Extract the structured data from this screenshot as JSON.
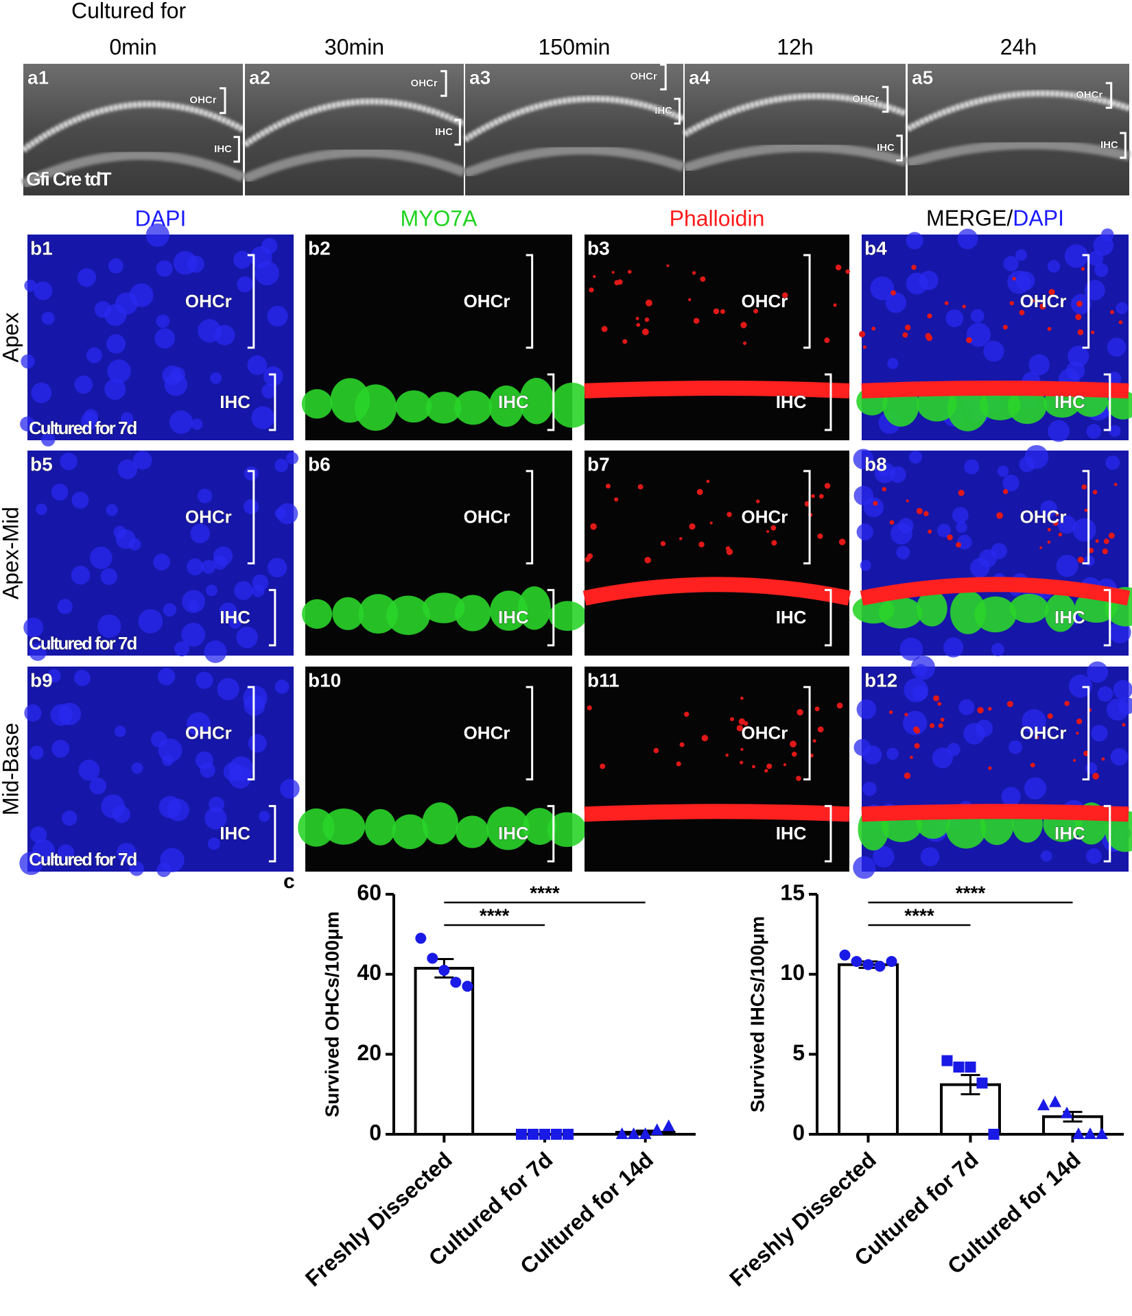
{
  "header": "Cultured for",
  "time_labels": [
    "0min",
    "30min",
    "150min",
    "12h",
    "24h"
  ],
  "a_panels": [
    {
      "id": "a1",
      "labels": [
        "OHCr",
        "IHC"
      ],
      "note": "Gfi Cre tdT"
    },
    {
      "id": "a2",
      "labels": [
        "OHCr",
        "IHC"
      ]
    },
    {
      "id": "a3",
      "labels": [
        "OHCr",
        "IHC"
      ]
    },
    {
      "id": "a4",
      "labels": [
        "OHCr",
        "IHC"
      ]
    },
    {
      "id": "a5",
      "labels": [
        "OHCr",
        "IHC"
      ]
    }
  ],
  "column_headers": [
    {
      "text": "DAPI",
      "color": "#1a1aff"
    },
    {
      "text": "MYO7A",
      "color": "#1ed41e"
    },
    {
      "text": "Phalloidin",
      "color": "#ff1a1a"
    },
    {
      "parts": [
        {
          "text": "MERGE/",
          "color": "#000000"
        },
        {
          "text": "DAPI",
          "color": "#1a1aff"
        }
      ]
    }
  ],
  "row_labels": [
    "Apex",
    "Apex-Mid",
    "Mid-Base"
  ],
  "b_panels": [
    {
      "id": "b1",
      "labels": [
        "OHCr",
        "IHC"
      ],
      "note": "Cultured for 7d"
    },
    {
      "id": "b2",
      "labels": [
        "OHCr",
        "IHC"
      ]
    },
    {
      "id": "b3",
      "labels": [
        "OHCr",
        "IHC"
      ]
    },
    {
      "id": "b4",
      "labels": [
        "OHCr",
        "IHC"
      ]
    },
    {
      "id": "b5",
      "labels": [
        "OHCr",
        "IHC"
      ],
      "note": "Cultured for 7d"
    },
    {
      "id": "b6",
      "labels": [
        "OHCr",
        "IHC"
      ]
    },
    {
      "id": "b7",
      "labels": [
        "OHCr",
        "IHC"
      ]
    },
    {
      "id": "b8",
      "labels": [
        "OHCr",
        "IHC"
      ]
    },
    {
      "id": "b9",
      "labels": [
        "OHCr",
        "IHC"
      ],
      "note": "Cultured for 7d"
    },
    {
      "id": "b10",
      "labels": [
        "OHCr",
        "IHC"
      ]
    },
    {
      "id": "b11",
      "labels": [
        "OHCr",
        "IHC"
      ]
    },
    {
      "id": "b12",
      "labels": [
        "OHCr",
        "IHC"
      ]
    }
  ],
  "panel_c": "c",
  "chart_data": [
    {
      "type": "bar",
      "ylabel": "Survived OHCs/100μm",
      "categories": [
        "Freshly Dissected",
        "Cultured for 7d",
        "Cultured for 14d"
      ],
      "values": [
        41.5,
        0,
        0.5
      ],
      "errors": [
        2.3,
        0,
        0.4
      ],
      "points": [
        [
          49,
          44,
          41,
          38,
          37
        ],
        [
          0,
          0,
          0,
          0,
          0
        ],
        [
          0,
          0,
          0,
          1,
          2
        ]
      ],
      "markers": [
        "circle",
        "square",
        "triangle"
      ],
      "point_color": "#1a1ae6",
      "bar_color": "#ffffff",
      "ylim": [
        0,
        60
      ],
      "yticks": [
        0,
        20,
        40,
        60
      ],
      "significance": [
        {
          "between": [
            "Freshly Dissected",
            "Cultured for 7d"
          ],
          "label": "****"
        },
        {
          "between": [
            "Freshly Dissected",
            "Cultured for 14d"
          ],
          "label": "****"
        }
      ]
    },
    {
      "type": "bar",
      "ylabel": "Survived IHCs/100μm",
      "categories": [
        "Freshly Dissected",
        "Cultured for 7d",
        "Cultured for 14d"
      ],
      "values": [
        10.6,
        3.1,
        1.1
      ],
      "errors": [
        0.2,
        0.6,
        0.3
      ],
      "points": [
        [
          11.2,
          10.8,
          10.6,
          10.5,
          10.8
        ],
        [
          4.6,
          4.2,
          4.2,
          3.2,
          0
        ],
        [
          1.8,
          2.0,
          1.3,
          0,
          0,
          0
        ]
      ],
      "markers": [
        "circle",
        "square",
        "triangle"
      ],
      "point_color": "#1a1ae6",
      "bar_color": "#ffffff",
      "ylim": [
        0,
        15
      ],
      "yticks": [
        0,
        5,
        10,
        15
      ],
      "significance": [
        {
          "between": [
            "Freshly Dissected",
            "Cultured for 7d"
          ],
          "label": "****"
        },
        {
          "between": [
            "Freshly Dissected",
            "Cultured for 14d"
          ],
          "label": "****"
        }
      ]
    }
  ]
}
